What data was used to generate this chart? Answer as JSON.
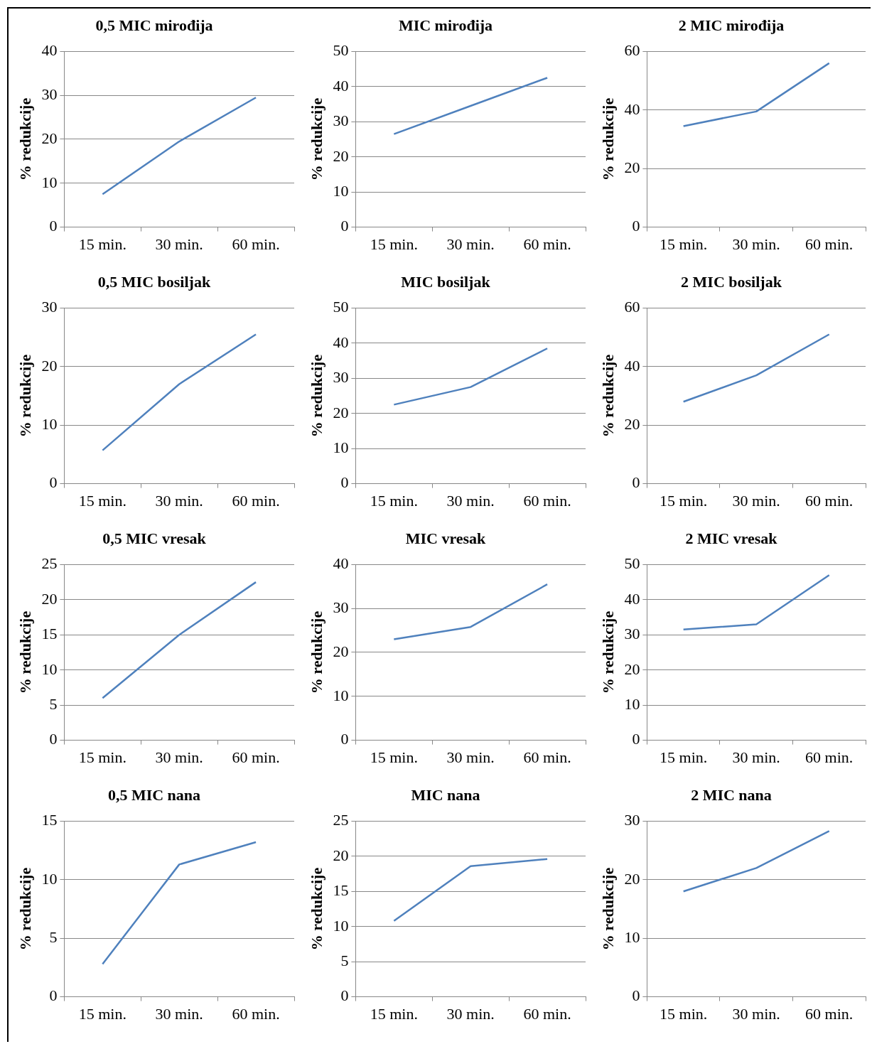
{
  "chart_data": [
    {
      "type": "line",
      "title": "0,5 MIC mirođija",
      "ylabel": "% redukcije",
      "categories": [
        "15 min.",
        "30 min.",
        "60 min."
      ],
      "series": [
        {
          "color": "#4f81bd",
          "values": [
            7.5,
            19.5,
            29.5
          ]
        }
      ],
      "ylim": [
        0,
        40
      ],
      "yticks": [
        0,
        10,
        20,
        30,
        40
      ],
      "grid": "y",
      "legend": false
    },
    {
      "type": "line",
      "title": "MIC mirođija",
      "ylabel": "% redukcije",
      "categories": [
        "15 min.",
        "30 min.",
        "60 min."
      ],
      "series": [
        {
          "color": "#4f81bd",
          "values": [
            26.5,
            34.5,
            42.5
          ]
        }
      ],
      "ylim": [
        0,
        50
      ],
      "yticks": [
        0,
        10,
        20,
        30,
        40,
        50
      ],
      "grid": "y",
      "legend": false
    },
    {
      "type": "line",
      "title": "2 MIC mirođija",
      "ylabel": "% redukcije",
      "categories": [
        "15 min.",
        "30 min.",
        "60 min."
      ],
      "series": [
        {
          "color": "#4f81bd",
          "values": [
            34.5,
            39.5,
            56
          ]
        }
      ],
      "ylim": [
        0,
        60
      ],
      "yticks": [
        0,
        20,
        40,
        60
      ],
      "grid": "y",
      "legend": false
    },
    {
      "type": "line",
      "title": "0,5 MIC bosiljak",
      "ylabel": "% redukcije",
      "categories": [
        "15 min.",
        "30 min.",
        "60 min."
      ],
      "series": [
        {
          "color": "#4f81bd",
          "values": [
            5.7,
            17,
            25.5
          ]
        }
      ],
      "ylim": [
        0,
        30
      ],
      "yticks": [
        0,
        10,
        20,
        30
      ],
      "grid": "y",
      "legend": false
    },
    {
      "type": "line",
      "title": "MIC bosiljak",
      "ylabel": "% redukcije",
      "categories": [
        "15 min.",
        "30 min.",
        "60 min."
      ],
      "series": [
        {
          "color": "#4f81bd",
          "values": [
            22.5,
            27.5,
            38.5
          ]
        }
      ],
      "ylim": [
        0,
        50
      ],
      "yticks": [
        0,
        10,
        20,
        30,
        40,
        50
      ],
      "grid": "y",
      "legend": false
    },
    {
      "type": "line",
      "title": "2 MIC bosiljak",
      "ylabel": "% redukcije",
      "categories": [
        "15 min.",
        "30 min.",
        "60 min."
      ],
      "series": [
        {
          "color": "#4f81bd",
          "values": [
            28,
            37,
            51
          ]
        }
      ],
      "ylim": [
        0,
        60
      ],
      "yticks": [
        0,
        20,
        40,
        60
      ],
      "grid": "y",
      "legend": false
    },
    {
      "type": "line",
      "title": "0,5 MIC vresak",
      "ylabel": "% redukcije",
      "categories": [
        "15 min.",
        "30 min.",
        "60 min."
      ],
      "series": [
        {
          "color": "#4f81bd",
          "values": [
            6,
            15,
            22.5
          ]
        }
      ],
      "ylim": [
        0,
        25
      ],
      "yticks": [
        0,
        5,
        10,
        15,
        20,
        25
      ],
      "grid": "y",
      "legend": false
    },
    {
      "type": "line",
      "title": "MIC vresak",
      "ylabel": "% redukcije",
      "categories": [
        "15 min.",
        "30 min.",
        "60 min."
      ],
      "series": [
        {
          "color": "#4f81bd",
          "values": [
            23,
            25.8,
            35.5
          ]
        }
      ],
      "ylim": [
        0,
        40
      ],
      "yticks": [
        0,
        10,
        20,
        30,
        40
      ],
      "grid": "y",
      "legend": false
    },
    {
      "type": "line",
      "title": "2 MIC vresak",
      "ylabel": "% redukcije",
      "categories": [
        "15 min.",
        "30 min.",
        "60 min."
      ],
      "series": [
        {
          "color": "#4f81bd",
          "values": [
            31.5,
            33,
            47
          ]
        }
      ],
      "ylim": [
        0,
        50
      ],
      "yticks": [
        0,
        10,
        20,
        30,
        40,
        50
      ],
      "grid": "y",
      "legend": false
    },
    {
      "type": "line",
      "title": "0,5 MIC nana",
      "ylabel": "% redukcije",
      "categories": [
        "15 min.",
        "30 min.",
        "60 min."
      ],
      "series": [
        {
          "color": "#4f81bd",
          "values": [
            2.8,
            11.3,
            13.2
          ]
        }
      ],
      "ylim": [
        0,
        15
      ],
      "yticks": [
        0,
        5,
        10,
        15
      ],
      "grid": "y",
      "legend": false
    },
    {
      "type": "line",
      "title": "MIC nana",
      "ylabel": "% redukcije",
      "categories": [
        "15 min.",
        "30 min.",
        "60 min."
      ],
      "series": [
        {
          "color": "#4f81bd",
          "values": [
            10.8,
            18.6,
            19.6
          ]
        }
      ],
      "ylim": [
        0,
        25
      ],
      "yticks": [
        0,
        5,
        10,
        15,
        20,
        25
      ],
      "grid": "y",
      "legend": false
    },
    {
      "type": "line",
      "title": "2 MIC nana",
      "ylabel": "% redukcije",
      "categories": [
        "15 min.",
        "30 min.",
        "60 min."
      ],
      "series": [
        {
          "color": "#4f81bd",
          "values": [
            18,
            22,
            28.3
          ]
        }
      ],
      "ylim": [
        0,
        30
      ],
      "yticks": [
        0,
        10,
        20,
        30
      ],
      "grid": "y",
      "legend": false
    }
  ]
}
